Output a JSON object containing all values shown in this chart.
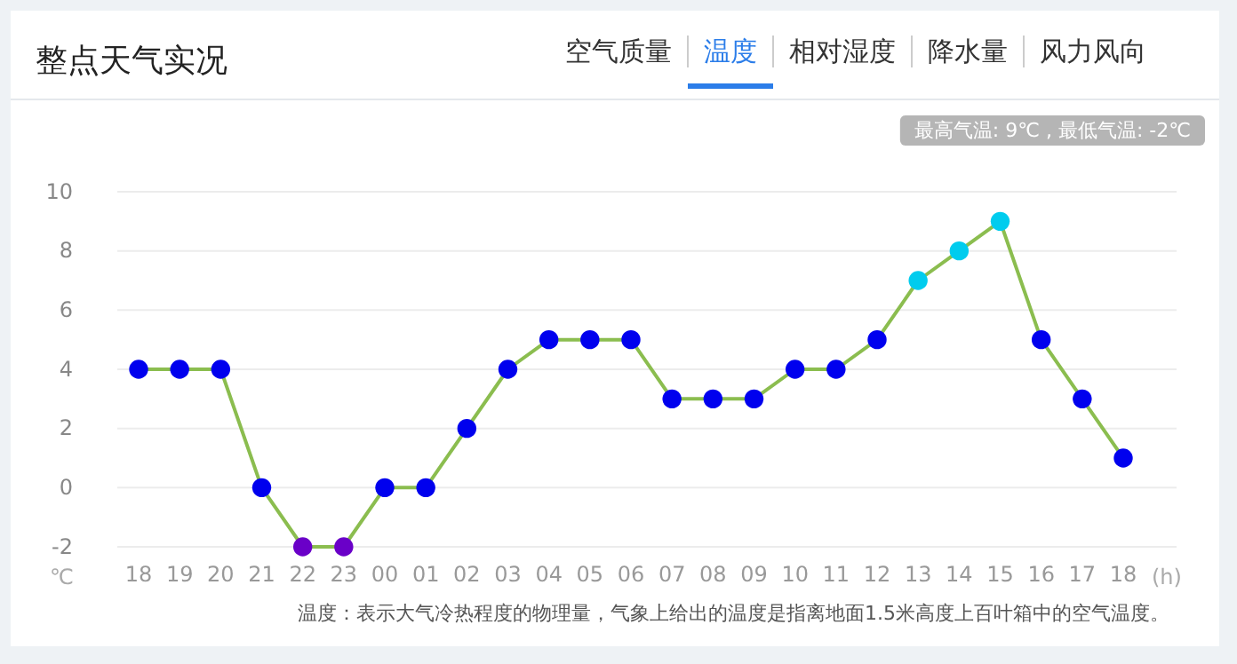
{
  "chart_data": {
    "type": "line",
    "title": "整点天气实况",
    "xlabel": "(h)",
    "ylabel": "℃",
    "categories": [
      "18",
      "19",
      "20",
      "21",
      "22",
      "23",
      "00",
      "01",
      "02",
      "03",
      "04",
      "05",
      "06",
      "07",
      "08",
      "09",
      "10",
      "11",
      "12",
      "13",
      "14",
      "15",
      "16",
      "17",
      "18"
    ],
    "series": [
      {
        "color": "#8bbd4f",
        "values": [
          4,
          4,
          4,
          0,
          -2,
          -2,
          0,
          0,
          2,
          4,
          5,
          5,
          5,
          3,
          3,
          3,
          4,
          4,
          5,
          7,
          8,
          9,
          5,
          3,
          1
        ],
        "colors": [
          "#0000ee",
          "#0000ee",
          "#0000ee",
          "#0000ee",
          "#6a00c8",
          "#6a00c8",
          "#0000ee",
          "#0000ee",
          "#0000ee",
          "#0000ee",
          "#0000ee",
          "#0000ee",
          "#0000ee",
          "#0000ee",
          "#0000ee",
          "#0000ee",
          "#0000ee",
          "#0000ee",
          "#0000ee",
          "#00ccee",
          "#00ccee",
          "#00ccee",
          "#0000ee",
          "#0000ee",
          "#0000ee"
        ]
      }
    ],
    "ylim": [
      -2,
      10
    ],
    "yticks": [
      -2,
      0,
      2,
      4,
      6,
      8,
      10
    ],
    "grid": "y",
    "marker": "circle",
    "line_style": "solid",
    "annotations": [
      "空气质量",
      "温度",
      "相对湿度",
      "降水量",
      "风力风向",
      "最高气温: 9℃ , 最低气温: -2℃",
      "温度：表示大气冷热程度的物理量，气象上给出的温度是指离地面1.5米高度上百叶箱中的空气温度。"
    ]
  }
}
